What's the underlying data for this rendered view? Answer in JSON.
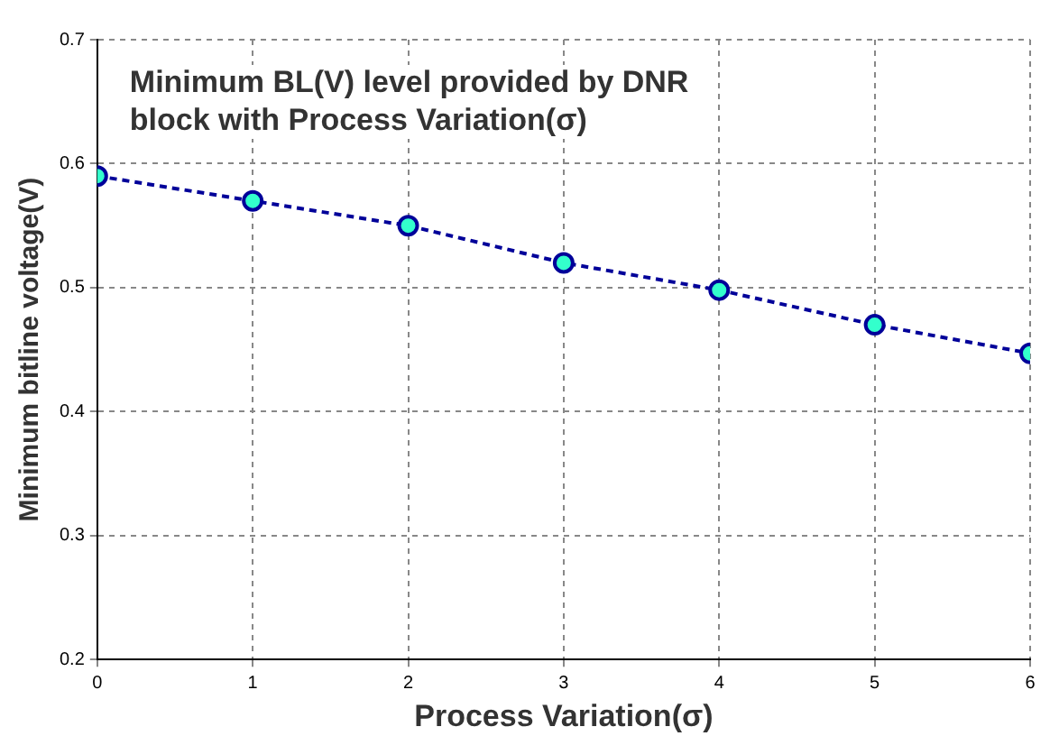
{
  "chart_data": {
    "type": "line",
    "title": "Minimum BL(V) level provided by DNR block with Process Variation(σ)",
    "xlabel": "Process Variation(σ)",
    "ylabel": "Minimum bitline voltage(V)",
    "x": [
      0,
      1,
      2,
      3,
      4,
      5,
      6
    ],
    "series": [
      {
        "color": "#000099",
        "values": [
          0.59,
          0.57,
          0.55,
          0.52,
          0.498,
          0.47,
          0.447
        ]
      }
    ],
    "xlim": [
      0,
      6
    ],
    "xticks": [
      0,
      1,
      2,
      3,
      4,
      5,
      6
    ],
    "ylim": [
      0.2,
      0.7
    ],
    "yticks": [
      0.2,
      0.3,
      0.4,
      0.5,
      0.6,
      0.7
    ],
    "grid": true,
    "legend": false,
    "marker": "circle",
    "line_style": "dashed"
  }
}
